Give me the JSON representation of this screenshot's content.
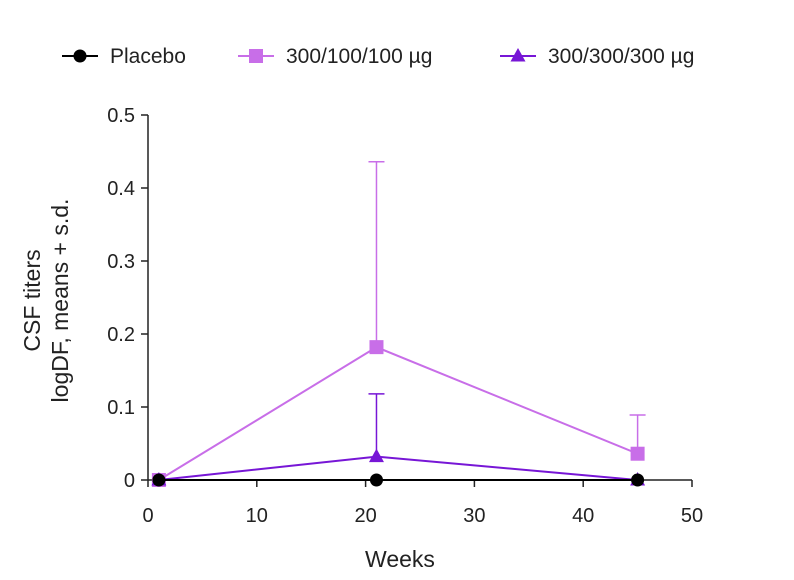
{
  "chart_data": {
    "type": "line",
    "xlabel": "Weeks",
    "ylabel_lines": [
      "CSF titers",
      "logDF, means + s.d."
    ],
    "xlim": [
      0,
      50
    ],
    "ylim": [
      0,
      0.5
    ],
    "x_ticks": [
      "0",
      "10",
      "20",
      "30",
      "40",
      "50"
    ],
    "y_ticks": [
      "0",
      "0.1",
      "0.2",
      "0.3",
      "0.4",
      "0.5"
    ],
    "legend_position": "top",
    "series": [
      {
        "name": "Placebo",
        "marker": "circle",
        "color": "#000000",
        "x": [
          1,
          21,
          45
        ],
        "values": [
          0,
          0,
          0
        ],
        "sd": [
          0,
          0,
          0
        ]
      },
      {
        "name": "300/100/100 µg",
        "marker": "square",
        "color": "#c86ee8",
        "x": [
          1,
          21,
          45
        ],
        "values": [
          0,
          0.182,
          0.036
        ],
        "sd": [
          0,
          0.254,
          0.053
        ]
      },
      {
        "name": "300/300/300 µg",
        "marker": "triangle",
        "color": "#7716d6",
        "x": [
          1,
          21,
          45
        ],
        "values": [
          0,
          0.032,
          0
        ],
        "sd": [
          0,
          0.086,
          0
        ]
      }
    ]
  }
}
